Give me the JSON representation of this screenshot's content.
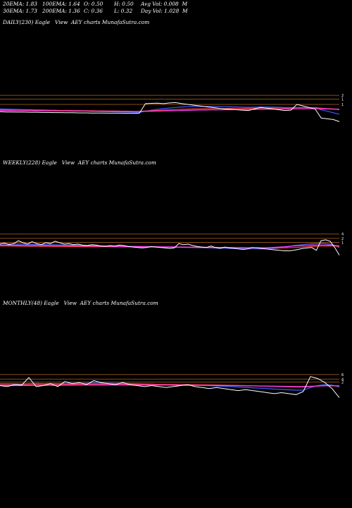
{
  "stats": {
    "ema20": "20EMA: 1.83",
    "ema100": "100EMA: 1.64",
    "open": "O: 0.50",
    "high": "H: 0.50",
    "avg_vol": "Avg Vol: 0.008  M",
    "ema30": "30EMA: 1.73",
    "ema200": "200EMA: 1.36",
    "close": "C: 0.36",
    "low": "L: 0.32",
    "day_vol": "Day Vol: 1.028  M"
  },
  "colors": {
    "background": "#000000",
    "price": "#ffffff",
    "ema_blue": "#3a5cff",
    "ema_red": "#ff3b3b",
    "ema_magenta": "#ff40ff",
    "level_orange": "#b5651d"
  },
  "chart_data": [
    {
      "type": "line",
      "title": "DAILY(230) Eagle   View  AEY charts MunafaSutra.com",
      "tick_labels": [
        "2",
        "1",
        "1"
      ],
      "series": [
        {
          "values": [
            1.02,
            1.0,
            1.0,
            0.99,
            0.99,
            0.98,
            0.98,
            0.97,
            0.97,
            0.96,
            0.96,
            0.95,
            0.95,
            0.94,
            0.94,
            0.93,
            0.93,
            0.93,
            0.92,
            0.92,
            0.92,
            0.91,
            0.91,
            0.92,
            1.55,
            1.57,
            1.58,
            1.55,
            1.6,
            1.62,
            1.55,
            1.5,
            1.45,
            1.4,
            1.35,
            1.3,
            1.25,
            1.2,
            1.18,
            1.15,
            1.12,
            1.1,
            1.2,
            1.3,
            1.25,
            1.2,
            1.15,
            1.1,
            1.12,
            1.5,
            1.4,
            1.3,
            1.2,
            0.6,
            0.55,
            0.5,
            0.36
          ]
        },
        {
          "values": [
            1.2,
            1.19,
            1.18,
            1.17,
            1.16,
            1.15,
            1.14,
            1.13,
            1.12,
            1.11,
            1.1,
            1.09,
            1.08,
            1.07,
            1.06,
            1.05,
            1.04,
            1.03,
            1.02,
            1.01,
            1.0,
            0.99,
            0.98,
            0.97,
            1.05,
            1.12,
            1.18,
            1.22,
            1.26,
            1.3,
            1.33,
            1.35,
            1.36,
            1.37,
            1.37,
            1.37,
            1.36,
            1.35,
            1.34,
            1.33,
            1.32,
            1.31,
            1.32,
            1.33,
            1.33,
            1.32,
            1.31,
            1.3,
            1.29,
            1.3,
            1.3,
            1.29,
            1.28,
            1.15,
            1.05,
            0.95,
            0.85
          ]
        },
        {
          "values": [
            1.15,
            1.15,
            1.14,
            1.14,
            1.13,
            1.13,
            1.12,
            1.12,
            1.11,
            1.11,
            1.1,
            1.1,
            1.09,
            1.09,
            1.08,
            1.08,
            1.07,
            1.07,
            1.06,
            1.06,
            1.05,
            1.05,
            1.04,
            1.04,
            1.06,
            1.08,
            1.1,
            1.12,
            1.14,
            1.16,
            1.18,
            1.19,
            1.2,
            1.21,
            1.22,
            1.22,
            1.23,
            1.23,
            1.24,
            1.24,
            1.24,
            1.25,
            1.25,
            1.26,
            1.26,
            1.26,
            1.27,
            1.27,
            1.27,
            1.28,
            1.28,
            1.28,
            1.29,
            1.25,
            1.22,
            1.2,
            1.15
          ]
        },
        {
          "values": [
            1.1,
            1.1,
            1.1,
            1.09,
            1.09,
            1.09,
            1.08,
            1.08,
            1.08,
            1.07,
            1.07,
            1.07,
            1.06,
            1.06,
            1.06,
            1.05,
            1.05,
            1.05,
            1.04,
            1.04,
            1.04,
            1.03,
            1.03,
            1.03,
            1.04,
            1.05,
            1.06,
            1.07,
            1.08,
            1.09,
            1.1,
            1.11,
            1.12,
            1.13,
            1.13,
            1.14,
            1.14,
            1.15,
            1.15,
            1.16,
            1.16,
            1.17,
            1.17,
            1.18,
            1.18,
            1.19,
            1.19,
            1.2,
            1.2,
            1.21,
            1.21,
            1.22,
            1.22,
            1.21,
            1.2,
            1.19,
            1.18
          ]
        }
      ],
      "levels": [
        2.1,
        1.85,
        1.5
      ]
    },
    {
      "type": "line",
      "title": "WEEKLY(228) Eagle   View  AEY charts MunafaSutra.com",
      "tick_labels": [
        "4",
        "2",
        "1"
      ],
      "series": [
        {
          "values": [
            1.55,
            1.65,
            1.5,
            1.6,
            1.9,
            1.7,
            1.55,
            1.8,
            1.6,
            1.5,
            1.7,
            1.6,
            1.85,
            1.7,
            1.55,
            1.6,
            1.5,
            1.55,
            1.45,
            1.4,
            1.5,
            1.45,
            1.35,
            1.3,
            1.4,
            1.35,
            1.45,
            1.4,
            1.3,
            1.25,
            1.2,
            1.15,
            1.2,
            1.3,
            1.25,
            1.2,
            1.15,
            1.1,
            1.15,
            1.6,
            1.5,
            1.55,
            1.4,
            1.3,
            1.25,
            1.2,
            1.35,
            1.2,
            1.1,
            1.25,
            1.15,
            1.1,
            1.05,
            1.0,
            1.05,
            1.2,
            1.15,
            1.1,
            1.05,
            1.0,
            0.95,
            0.9,
            0.85,
            0.85,
            0.9,
            1.0,
            1.1,
            1.15,
            1.2,
            0.9,
            1.9,
            2.0,
            1.85,
            1.2,
            0.4
          ]
        },
        {
          "values": [
            1.6,
            1.58,
            1.57,
            1.56,
            1.55,
            1.54,
            1.53,
            1.52,
            1.52,
            1.51,
            1.5,
            1.49,
            1.48,
            1.47,
            1.46,
            1.45,
            1.44,
            1.43,
            1.42,
            1.41,
            1.4,
            1.39,
            1.38,
            1.37,
            1.36,
            1.35,
            1.34,
            1.33,
            1.32,
            1.31,
            1.3,
            1.29,
            1.28,
            1.27,
            1.26,
            1.25,
            1.24,
            1.23,
            1.22,
            1.22,
            1.21,
            1.2,
            1.19,
            1.18,
            1.17,
            1.16,
            1.15,
            1.14,
            1.13,
            1.12,
            1.11,
            1.1,
            1.09,
            1.08,
            1.07,
            1.06,
            1.05,
            1.05,
            1.06,
            1.08,
            1.1,
            1.15,
            1.2,
            1.3,
            1.4,
            1.45,
            1.5,
            1.55,
            1.58,
            1.6,
            1.62,
            1.6,
            1.55,
            1.4,
            1.2
          ]
        },
        {
          "values": [
            1.35,
            1.35,
            1.35,
            1.34,
            1.34,
            1.34,
            1.33,
            1.33,
            1.33,
            1.32,
            1.32,
            1.32,
            1.31,
            1.31,
            1.31,
            1.3,
            1.3,
            1.3,
            1.29,
            1.29,
            1.29,
            1.28,
            1.28,
            1.28,
            1.27,
            1.27,
            1.27,
            1.26,
            1.26,
            1.26,
            1.25,
            1.25,
            1.25,
            1.24,
            1.24,
            1.24,
            1.23,
            1.23,
            1.23,
            1.22,
            1.22,
            1.22,
            1.21,
            1.21,
            1.21,
            1.2,
            1.2,
            1.2,
            1.19,
            1.19,
            1.19,
            1.18,
            1.18,
            1.18,
            1.17,
            1.17,
            1.17,
            1.16,
            1.16,
            1.16,
            1.15,
            1.15,
            1.16,
            1.18,
            1.2,
            1.22,
            1.25,
            1.28,
            1.3,
            1.32,
            1.35,
            1.36,
            1.36,
            1.35,
            1.32
          ]
        },
        {
          "values": [
            1.45,
            1.44,
            1.44,
            1.43,
            1.43,
            1.42,
            1.42,
            1.41,
            1.41,
            1.4,
            1.4,
            1.39,
            1.39,
            1.38,
            1.38,
            1.37,
            1.37,
            1.36,
            1.36,
            1.35,
            1.35,
            1.34,
            1.34,
            1.33,
            1.33,
            1.32,
            1.32,
            1.31,
            1.31,
            1.3,
            1.3,
            1.29,
            1.29,
            1.28,
            1.28,
            1.27,
            1.27,
            1.26,
            1.26,
            1.25,
            1.25,
            1.24,
            1.24,
            1.23,
            1.23,
            1.22,
            1.22,
            1.21,
            1.21,
            1.2,
            1.2,
            1.19,
            1.19,
            1.18,
            1.18,
            1.17,
            1.17,
            1.17,
            1.18,
            1.2,
            1.22,
            1.25,
            1.28,
            1.32,
            1.35,
            1.38,
            1.4,
            1.42,
            1.44,
            1.45,
            1.46,
            1.46,
            1.45,
            1.42,
            1.38
          ]
        }
      ],
      "levels": [
        2.6,
        2.15,
        1.72
      ]
    },
    {
      "type": "line",
      "title": "MONTHLY(48) Eagle   View  AEY charts MunafaSutra.com",
      "tick_labels": [
        "6",
        "4",
        "2"
      ],
      "series": [
        {
          "values": [
            2.1,
            2.0,
            2.2,
            2.15,
            2.9,
            2.0,
            2.1,
            2.3,
            2.0,
            2.5,
            2.3,
            2.4,
            2.2,
            2.6,
            2.4,
            2.3,
            2.2,
            2.4,
            2.2,
            2.1,
            2.0,
            2.1,
            2.0,
            1.9,
            2.0,
            2.1,
            2.2,
            2.0,
            1.9,
            1.8,
            1.9,
            1.8,
            1.7,
            1.6,
            1.7,
            1.6,
            1.5,
            1.4,
            1.3,
            1.4,
            1.3,
            1.2,
            1.5,
            3.0,
            2.8,
            2.4,
            1.8,
            0.9
          ]
        },
        {
          "values": [
            2.3,
            2.3,
            2.28,
            2.27,
            2.3,
            2.32,
            2.3,
            2.31,
            2.3,
            2.33,
            2.33,
            2.34,
            2.33,
            2.35,
            2.35,
            2.34,
            2.33,
            2.33,
            2.31,
            2.29,
            2.27,
            2.25,
            2.23,
            2.2,
            2.18,
            2.17,
            2.16,
            2.14,
            2.12,
            2.09,
            2.06,
            2.03,
            2.0,
            1.96,
            1.92,
            1.88,
            1.84,
            1.8,
            1.75,
            1.72,
            1.68,
            1.64,
            1.65,
            1.9,
            2.1,
            2.2,
            2.15,
            1.95
          ]
        },
        {
          "values": [
            2.2,
            2.2,
            2.2,
            2.2,
            2.21,
            2.22,
            2.22,
            2.23,
            2.23,
            2.24,
            2.24,
            2.25,
            2.25,
            2.26,
            2.26,
            2.26,
            2.26,
            2.26,
            2.25,
            2.25,
            2.24,
            2.24,
            2.23,
            2.22,
            2.21,
            2.2,
            2.2,
            2.19,
            2.18,
            2.17,
            2.16,
            2.15,
            2.13,
            2.12,
            2.1,
            2.08,
            2.06,
            2.04,
            2.02,
            2.0,
            1.98,
            1.96,
            1.96,
            2.0,
            2.05,
            2.1,
            2.1,
            2.05
          ]
        },
        {
          "values": [
            2.1,
            2.1,
            2.1,
            2.11,
            2.11,
            2.12,
            2.12,
            2.13,
            2.13,
            2.14,
            2.14,
            2.15,
            2.15,
            2.16,
            2.16,
            2.16,
            2.16,
            2.16,
            2.16,
            2.16,
            2.16,
            2.15,
            2.15,
            2.15,
            2.14,
            2.14,
            2.13,
            2.13,
            2.12,
            2.12,
            2.11,
            2.1,
            2.1,
            2.09,
            2.08,
            2.07,
            2.06,
            2.05,
            2.04,
            2.03,
            2.02,
            2.01,
            2.01,
            2.03,
            2.06,
            2.08,
            2.09,
            2.08
          ]
        }
      ],
      "levels": [
        3.2,
        2.75,
        2.45
      ]
    }
  ]
}
